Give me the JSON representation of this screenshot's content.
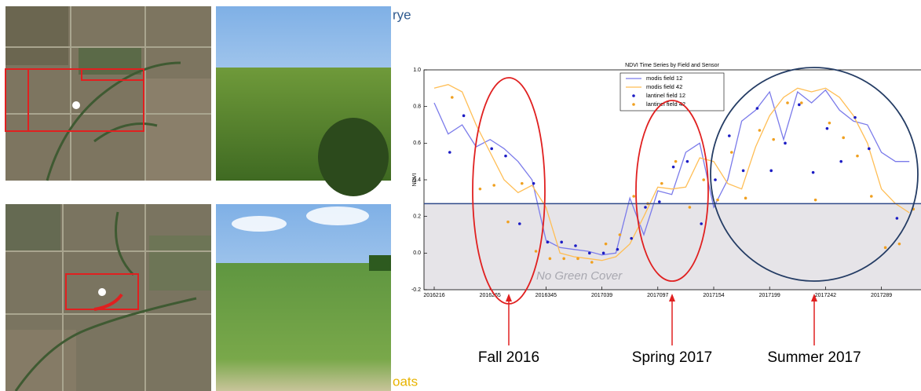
{
  "labels": {
    "top": "rye",
    "bottom": "oats"
  },
  "chart_data": {
    "type": "line",
    "title": "NDVI Time Series by Field and Sensor",
    "y_label": "NDVI",
    "categories": [
      "2016216",
      null,
      null,
      null,
      "2016265",
      null,
      null,
      null,
      "2016345",
      null,
      null,
      null,
      "2017039",
      null,
      null,
      null,
      "2017097",
      null,
      null,
      null,
      "2017154",
      null,
      null,
      null,
      "2017199",
      null,
      null,
      null,
      "2017242",
      null,
      null,
      null,
      "2017289",
      null,
      null
    ],
    "series": [
      {
        "name": "modis field 12",
        "color": "#7b7bea",
        "mode": "line",
        "values": [
          0.82,
          0.65,
          0.7,
          0.58,
          0.62,
          0.57,
          0.5,
          0.4,
          0.07,
          0.03,
          0.02,
          0.01,
          -0.01,
          0.0,
          0.3,
          0.1,
          0.34,
          0.32,
          0.55,
          0.6,
          0.25,
          0.4,
          0.72,
          0.78,
          0.88,
          0.62,
          0.88,
          0.82,
          0.89,
          0.78,
          0.72,
          0.7,
          0.55,
          0.5,
          0.5
        ]
      },
      {
        "name": "modis field 42",
        "color": "#ffbe55",
        "mode": "line",
        "values": [
          0.9,
          0.92,
          0.88,
          0.7,
          0.55,
          0.4,
          0.33,
          0.37,
          0.25,
          0.0,
          -0.02,
          -0.03,
          -0.04,
          -0.02,
          0.05,
          0.2,
          0.36,
          0.35,
          0.36,
          0.52,
          0.5,
          0.38,
          0.35,
          0.58,
          0.75,
          0.85,
          0.9,
          0.88,
          0.9,
          0.85,
          0.75,
          0.6,
          0.35,
          0.27,
          0.22
        ]
      },
      {
        "name": "lantinel field 12",
        "color": "#1c1cc4",
        "mode": "markers",
        "values": [
          null,
          0.55,
          0.75,
          null,
          0.57,
          0.53,
          0.16,
          0.38,
          0.06,
          0.06,
          0.04,
          0.0,
          0.0,
          0.02,
          0.08,
          0.25,
          0.28,
          0.47,
          0.5,
          0.16,
          0.4,
          0.64,
          0.45,
          0.79,
          0.45,
          0.6,
          0.81,
          0.44,
          0.68,
          0.5,
          0.74,
          0.57,
          null,
          0.19,
          null
        ]
      },
      {
        "name": "lantinel field 42",
        "color": "#f0a020",
        "mode": "markers",
        "values": [
          null,
          0.85,
          null,
          0.35,
          0.37,
          0.17,
          0.38,
          0.01,
          -0.03,
          -0.03,
          -0.03,
          -0.05,
          0.05,
          0.1,
          0.31,
          0.27,
          0.38,
          0.5,
          0.25,
          0.4,
          0.29,
          0.55,
          0.3,
          0.67,
          0.62,
          0.82,
          0.82,
          0.29,
          0.71,
          0.63,
          0.53,
          0.31,
          0.03,
          0.05,
          0.24
        ]
      }
    ],
    "ylim": [
      -0.2,
      1.0
    ],
    "yticks": [
      -0.2,
      {
        "value": 0,
        "label": "0.0"
      },
      0.2,
      0.4,
      0.6,
      0.8,
      {
        "value": 1,
        "label": "1.0"
      }
    ],
    "threshold": 0.27,
    "band_label": "No Green Cover",
    "periods": [
      "Fall 2016",
      "Spring 2017",
      "Summer 2017"
    ]
  }
}
